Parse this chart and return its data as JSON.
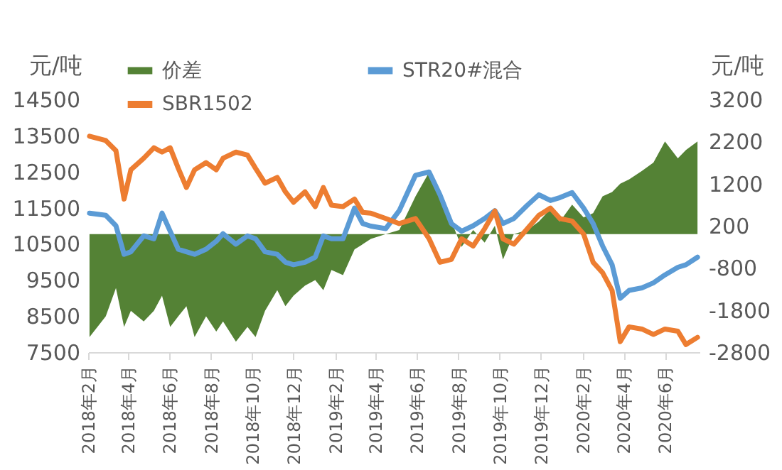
{
  "chart_data": {
    "type": "line",
    "ylabel": "元/吨",
    "y2label": "元/吨",
    "legend": "top",
    "x": [
      "2018-02-03",
      "2018-02-27",
      "2018-03-14",
      "2018-03-26",
      "2018-04-05",
      "2018-04-24",
      "2018-05-09",
      "2018-05-21",
      "2018-06-02",
      "2018-06-14",
      "2018-06-26",
      "2018-07-08",
      "2018-07-25",
      "2018-08-09",
      "2018-08-19",
      "2018-09-07",
      "2018-09-24",
      "2018-10-06",
      "2018-10-20",
      "2018-11-07",
      "2018-11-19",
      "2018-12-01",
      "2018-12-18",
      "2019-01-02",
      "2019-01-14",
      "2019-01-26",
      "2019-02-12",
      "2019-03-01",
      "2019-03-13",
      "2019-03-25",
      "2019-04-16",
      "2019-05-06",
      "2019-05-30",
      "2019-06-19",
      "2019-07-05",
      "2019-07-22",
      "2019-08-06",
      "2019-08-23",
      "2019-09-09",
      "2019-09-24",
      "2019-10-06",
      "2019-10-22",
      "2019-11-11",
      "2019-11-28",
      "2019-12-15",
      "2019-12-29",
      "2020-01-16",
      "2020-02-02",
      "2020-02-16",
      "2020-03-01",
      "2020-03-15",
      "2020-03-27",
      "2020-04-09",
      "2020-04-28",
      "2020-05-15",
      "2020-06-01",
      "2020-06-20",
      "2020-07-02",
      "2020-07-19"
    ],
    "series": [
      {
        "name": "价差",
        "type": "area",
        "axis": "y2",
        "color": "#548235",
        "values": [
          -2440,
          -1950,
          -1280,
          -2200,
          -1820,
          -2070,
          -1820,
          -1460,
          -2200,
          -1950,
          -1710,
          -2440,
          -1950,
          -2310,
          -2070,
          -2550,
          -2200,
          -2440,
          -1820,
          -1330,
          -1710,
          -1460,
          -1220,
          -1090,
          -1330,
          -850,
          -970,
          -360,
          -240,
          -110,
          0,
          100,
          900,
          1470,
          1000,
          300,
          -300,
          100,
          -200,
          200,
          -600,
          0,
          100,
          300,
          600,
          300,
          700,
          400,
          500,
          900,
          1000,
          1200,
          1300,
          1500,
          1700,
          2200,
          1800,
          2000,
          2200
        ]
      },
      {
        "name": "STR20#混合",
        "color": "#5b9bd5",
        "values": [
          11350,
          11290,
          11000,
          10210,
          10280,
          10720,
          10640,
          11350,
          10850,
          10350,
          10280,
          10210,
          10350,
          10570,
          10780,
          10490,
          10720,
          10640,
          10280,
          10210,
          9990,
          9920,
          9990,
          10130,
          10720,
          10640,
          10640,
          11490,
          11060,
          10990,
          10920,
          11420,
          12400,
          12490,
          11860,
          11060,
          10850,
          11000,
          11200,
          11420,
          11060,
          11200,
          11570,
          11860,
          11700,
          11780,
          11920,
          11490,
          11060,
          10440,
          9920,
          8990,
          9210,
          9280,
          9420,
          9640,
          9850,
          9920,
          10130
        ]
      },
      {
        "name": "SBR1502",
        "color": "#ed7d31",
        "values": [
          13480,
          13360,
          13080,
          11740,
          12550,
          12870,
          13160,
          13040,
          13160,
          12590,
          12060,
          12550,
          12750,
          12550,
          12870,
          13040,
          12960,
          12590,
          12180,
          12340,
          11940,
          11650,
          11940,
          11530,
          12060,
          11570,
          11530,
          11740,
          11370,
          11350,
          11200,
          11060,
          11200,
          10640,
          9990,
          10070,
          10640,
          10440,
          10920,
          11410,
          10640,
          10490,
          10920,
          11290,
          11490,
          11200,
          11130,
          10770,
          9990,
          9700,
          9210,
          7790,
          8200,
          8140,
          7990,
          8140,
          8080,
          7710,
          7910
        ]
      }
    ],
    "xlim": [
      "2018-02-01",
      "2020-07-22"
    ],
    "xticks": [
      {
        "value": "2018-02",
        "label": "2018年2月"
      },
      {
        "value": "2018-04",
        "label": "2018年4月"
      },
      {
        "value": "2018-06",
        "label": "2018年6月"
      },
      {
        "value": "2018-08",
        "label": "2018年8月"
      },
      {
        "value": "2018-10",
        "label": "2018年10月"
      },
      {
        "value": "2018-12",
        "label": "2018年12月"
      },
      {
        "value": "2019-02",
        "label": "2019年2月"
      },
      {
        "value": "2019-04",
        "label": "2019年4月"
      },
      {
        "value": "2019-06",
        "label": "2019年6月"
      },
      {
        "value": "2019-08",
        "label": "2019年8月"
      },
      {
        "value": "2019-10",
        "label": "2019年10月"
      },
      {
        "value": "2019-12",
        "label": "2019年12月"
      },
      {
        "value": "2020-02",
        "label": "2020年2月"
      },
      {
        "value": "2020-04",
        "label": "2020年4月"
      },
      {
        "value": "2020-06",
        "label": "2020年6月"
      }
    ],
    "ylim": [
      7500,
      14500
    ],
    "yticks": [
      7500,
      8500,
      9500,
      10500,
      11500,
      12500,
      13500,
      14500
    ],
    "y2lim": [
      -2800,
      3200
    ],
    "y2ticks": [
      -2800,
      -1800,
      -800,
      200,
      1200,
      2200,
      3200
    ]
  }
}
